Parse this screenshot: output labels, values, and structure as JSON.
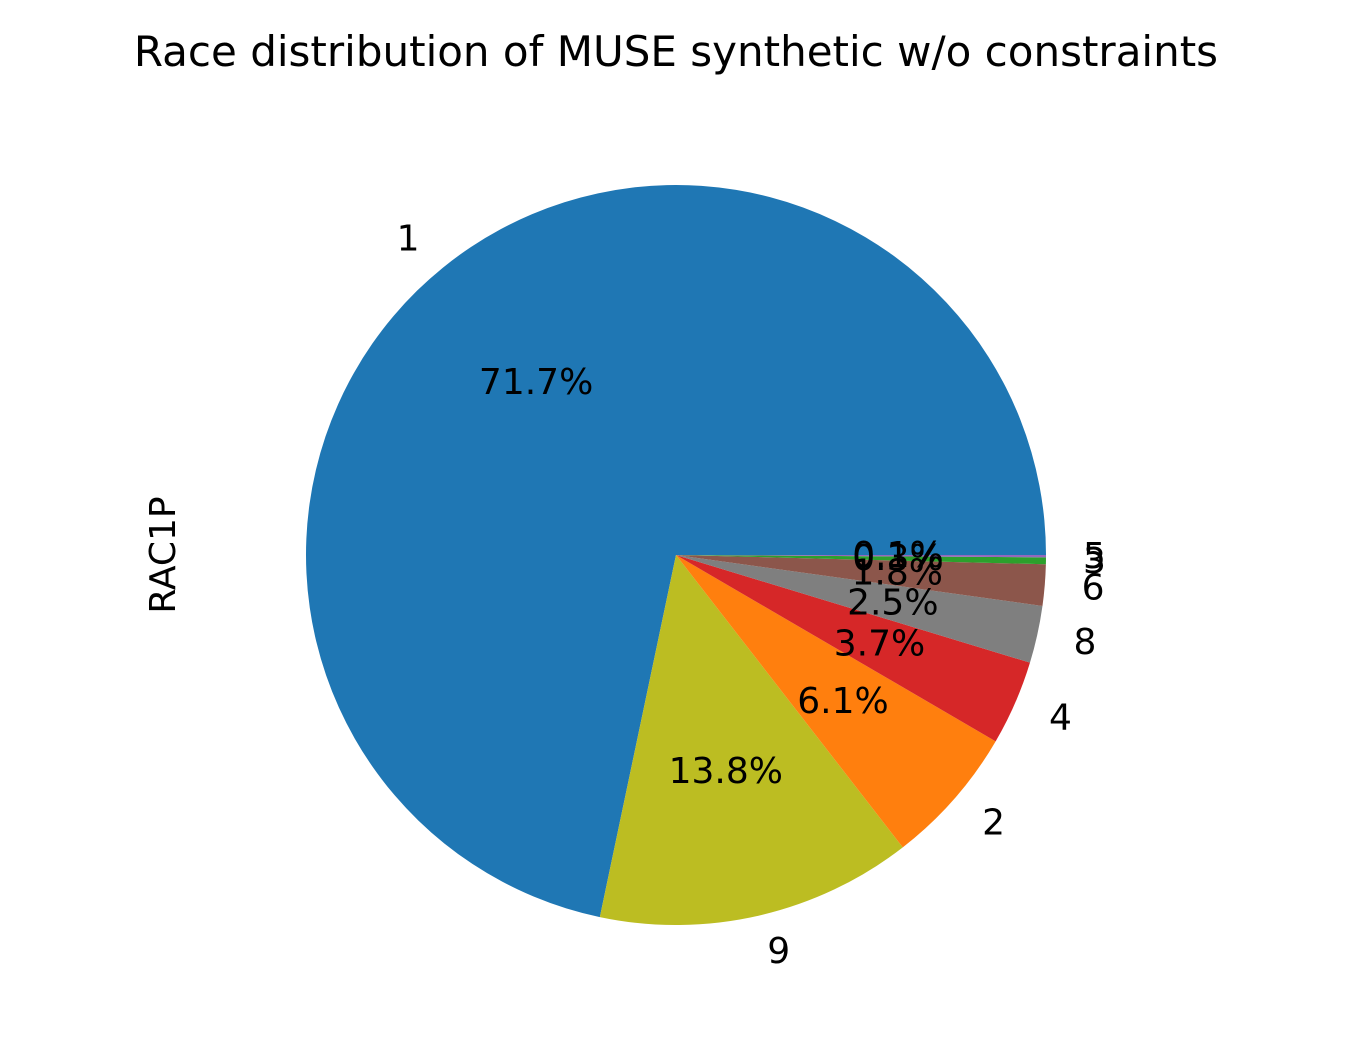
{
  "chart_data": {
    "type": "pie",
    "title": "Race distribution of MUSE synthetic w/o constraints",
    "ylabel": "RAC1P",
    "xlabel": "",
    "start_angle": 0,
    "direction": "counterclockwise",
    "slices": [
      {
        "label": "1",
        "percent_label": "71.7%",
        "value": 71.7,
        "color": "#1f77b4"
      },
      {
        "label": "9",
        "percent_label": "13.8%",
        "value": 13.8,
        "color": "#bcbd22"
      },
      {
        "label": "2",
        "percent_label": "6.1%",
        "value": 6.1,
        "color": "#ff7f0e"
      },
      {
        "label": "4",
        "percent_label": "3.7%",
        "value": 3.7,
        "color": "#d62728"
      },
      {
        "label": "8",
        "percent_label": "2.5%",
        "value": 2.5,
        "color": "#7f7f7f"
      },
      {
        "label": "6",
        "percent_label": "1.8%",
        "value": 1.8,
        "color": "#8c564b"
      },
      {
        "label": "3",
        "percent_label": "0.3%",
        "value": 0.3,
        "color": "#2ca02c"
      },
      {
        "label": "5",
        "percent_label": "0.1%",
        "value": 0.1,
        "color": "#9467bd"
      }
    ]
  }
}
